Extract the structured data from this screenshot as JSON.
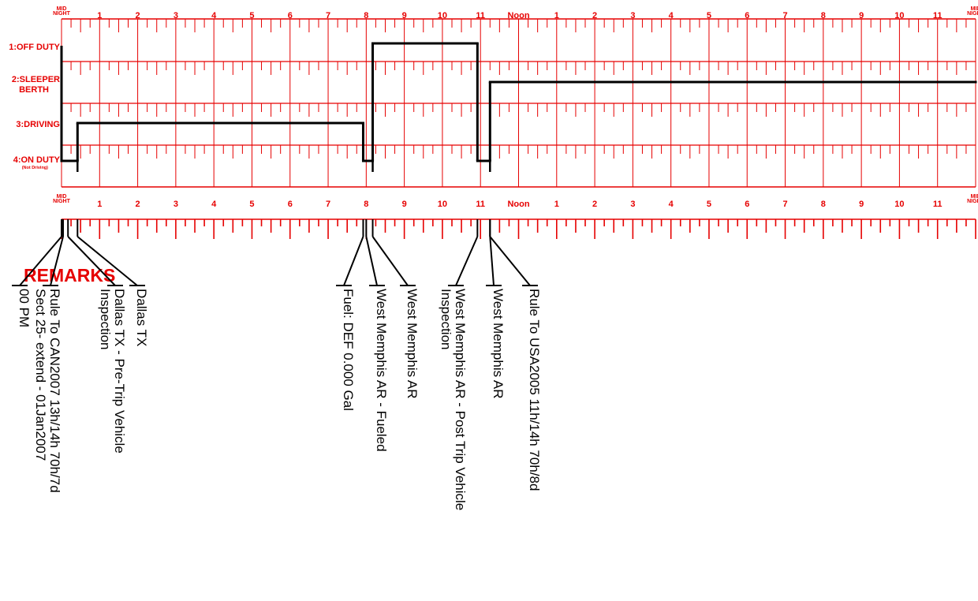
{
  "grid": {
    "hour_labels": [
      "1",
      "2",
      "3",
      "4",
      "5",
      "6",
      "7",
      "8",
      "9",
      "10",
      "11",
      "Noon",
      "1",
      "2",
      "3",
      "4",
      "5",
      "6",
      "7",
      "8",
      "9",
      "10",
      "11"
    ],
    "midnight_label_line1": "MID",
    "midnight_label_line2": "NIGHT",
    "status_rows": [
      {
        "label": "1:OFF DUTY",
        "sub": ""
      },
      {
        "label": "2:SLEEPER",
        "label2": "BERTH",
        "sub": ""
      },
      {
        "label": "3:DRIVING",
        "sub": ""
      },
      {
        "label": "4:ON DUTY",
        "sub": "(Not Driving)"
      }
    ],
    "colors": {
      "grid": "#e60000",
      "duty_line": "#000000",
      "remarks": "#000000"
    }
  },
  "chart_data": {
    "type": "duty-status-log",
    "rows": [
      "1:OFF DUTY",
      "2:SLEEPER BERTH",
      "3:DRIVING",
      "4:ON DUTY"
    ],
    "segments": [
      {
        "row": 4,
        "start": 0.0,
        "end": 0.42
      },
      {
        "row": 3,
        "start": 0.42,
        "end": 7.92
      },
      {
        "row": 4,
        "start": 7.92,
        "end": 8.17
      },
      {
        "row": 1,
        "start": 8.17,
        "end": 10.92
      },
      {
        "row": 4,
        "start": 10.92,
        "end": 11.25
      },
      {
        "row": 2,
        "start": 11.25,
        "end": 24.0
      }
    ]
  },
  "remarks": {
    "title": "REMARKS",
    "items": [
      {
        "hour": 0.0,
        "lines": [
          "00 PM"
        ]
      },
      {
        "hour": 0.0,
        "lines": [
          "Rule To CAN2007 13h/14h  70h/7d",
          "Sect 25- extend - 01Jan2007"
        ]
      },
      {
        "hour": 0.17,
        "lines": [
          "Dallas TX - Pre-Trip Vehicle",
          "Inspection"
        ]
      },
      {
        "hour": 0.42,
        "lines": [
          "Dallas TX"
        ]
      },
      {
        "hour": 7.92,
        "lines": [
          "Fuel:  DEF 0.000 Gal"
        ]
      },
      {
        "hour": 8.0,
        "lines": [
          "West Memphis AR - Fueled"
        ]
      },
      {
        "hour": 8.17,
        "lines": [
          "West Memphis AR"
        ]
      },
      {
        "hour": 10.92,
        "lines": [
          "West Memphis AR - Post Trip Vehicle",
          "Inspection"
        ]
      },
      {
        "hour": 11.25,
        "lines": [
          "West Memphis AR"
        ]
      },
      {
        "hour": 11.25,
        "lines": [
          "Rule To USA2005 11h/14h  70h/8d"
        ]
      }
    ]
  }
}
